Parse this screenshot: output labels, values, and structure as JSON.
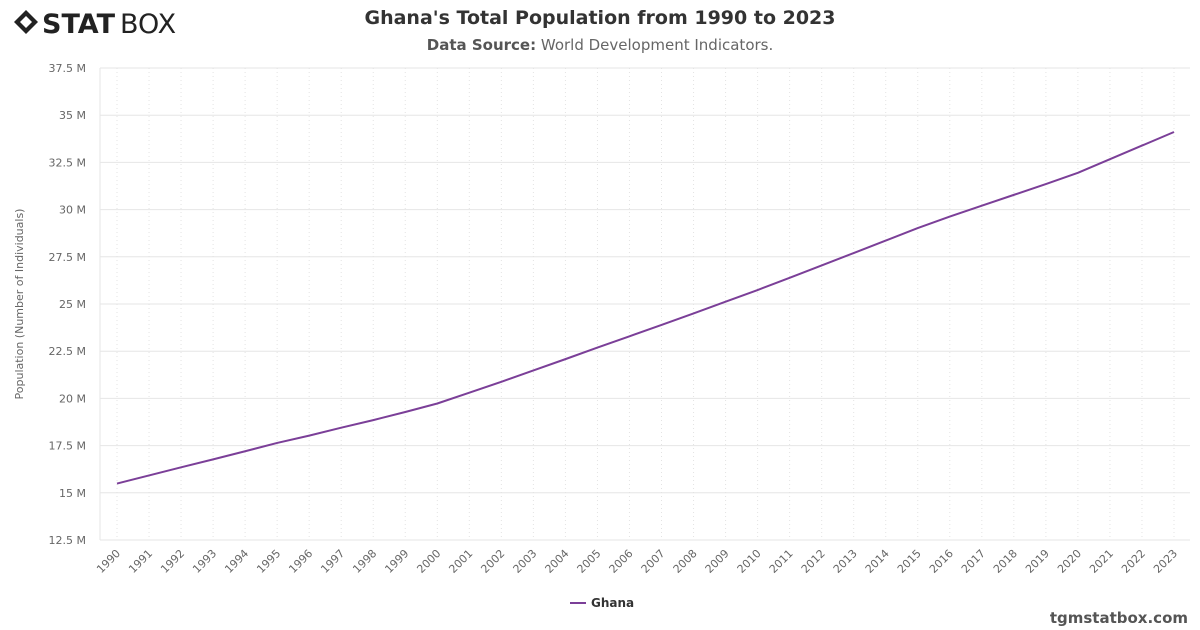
{
  "logo": {
    "text_bold": "STAT",
    "text_light": "BOX"
  },
  "header": {
    "title": "Ghana's Total Population from 1990 to 2023",
    "subtitle_label": "Data Source:",
    "subtitle_value": "World Development Indicators."
  },
  "footer": {
    "site": "tgmstatbox.com"
  },
  "chart_data": {
    "type": "line",
    "title": "Ghana's Total Population from 1990 to 2023",
    "xlabel": "",
    "ylabel": "Population (Number of Individuals)",
    "x": [
      1990,
      1991,
      1992,
      1993,
      1994,
      1995,
      1996,
      1997,
      1998,
      1999,
      2000,
      2001,
      2002,
      2003,
      2004,
      2005,
      2006,
      2007,
      2008,
      2009,
      2010,
      2011,
      2012,
      2013,
      2014,
      2015,
      2016,
      2017,
      2018,
      2019,
      2020,
      2021,
      2022,
      2023
    ],
    "series": [
      {
        "name": "Ghana",
        "color": "#7b3f98",
        "values": [
          15.49,
          15.92,
          16.35,
          16.77,
          17.2,
          17.64,
          18.03,
          18.45,
          18.85,
          19.28,
          19.73,
          20.3,
          20.88,
          21.48,
          22.08,
          22.69,
          23.29,
          23.89,
          24.5,
          25.12,
          25.74,
          26.39,
          27.04,
          27.7,
          28.36,
          29.02,
          29.63,
          30.21,
          30.78,
          31.35,
          31.95,
          32.67,
          33.39,
          34.11
        ]
      }
    ],
    "y_unit": "M",
    "ylim": [
      12.5,
      37.5
    ],
    "y_ticks": [
      "12.5 M",
      "15 M",
      "17.5 M",
      "20 M",
      "22.5 M",
      "25 M",
      "27.5 M",
      "30 M",
      "32.5 M",
      "35 M",
      "37.5 M"
    ],
    "grid": true,
    "legend_position": "bottom-center"
  }
}
